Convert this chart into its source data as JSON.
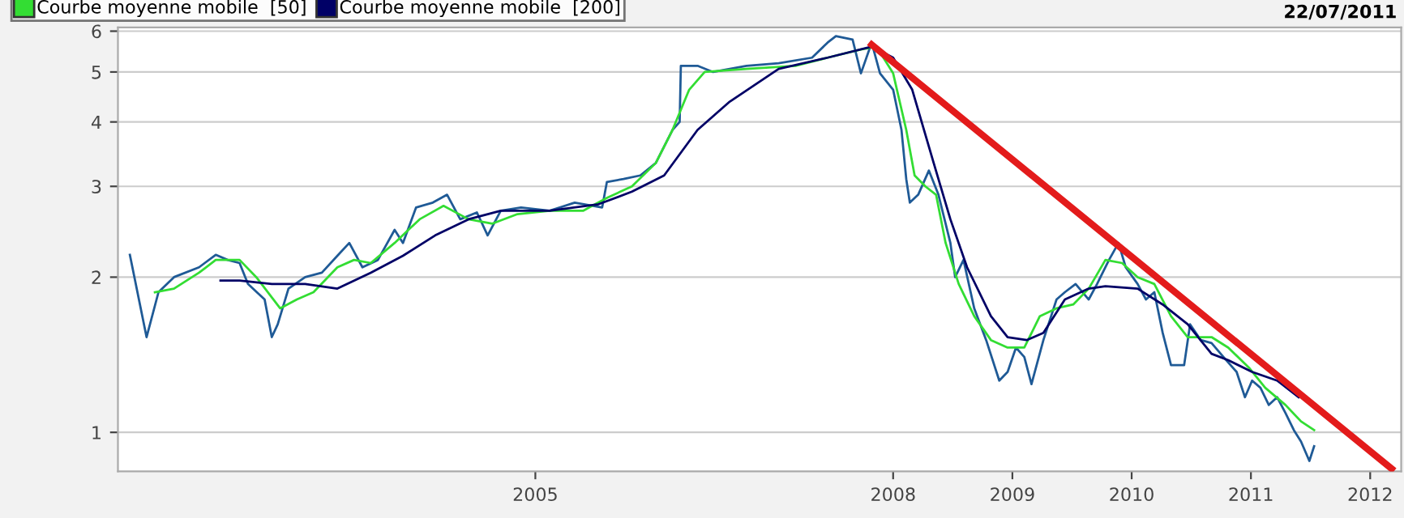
{
  "chart_data": {
    "type": "line",
    "annotations": [
      "22/07/2011"
    ],
    "xlim": [
      2001.5,
      2012.26
    ],
    "xticks": [
      2005,
      2008,
      2009,
      2010,
      2011,
      2012
    ],
    "ylim": [
      0.84,
      6.1
    ],
    "yticks": [
      1,
      2,
      3,
      4,
      5,
      6
    ],
    "log": true,
    "grid": "y",
    "legend": "top left",
    "marker": "none",
    "line_style": "solid",
    "series": [
      {
        "color": "#1f5a96",
        "x": [
          2001.6,
          2001.74,
          2001.84,
          2001.97,
          2002.18,
          2002.32,
          2002.42,
          2002.52,
          2002.59,
          2002.73,
          2002.79,
          2002.84,
          2002.93,
          2003.07,
          2003.21,
          2003.34,
          2003.44,
          2003.55,
          2003.68,
          2003.82,
          2003.89,
          2004.0,
          2004.14,
          2004.26,
          2004.37,
          2004.51,
          2004.6,
          2004.71,
          2004.88,
          2005.12,
          2005.33,
          2005.56,
          2005.6,
          2005.74,
          2005.88,
          2006.01,
          2006.15,
          2006.21,
          2006.22,
          2006.36,
          2006.49,
          2006.77,
          2007.04,
          2007.32,
          2007.45,
          2007.52,
          2007.66,
          2007.73,
          2007.82,
          2007.89,
          2008.0,
          2008.07,
          2008.11,
          2008.14,
          2008.21,
          2008.3,
          2008.38,
          2008.48,
          2008.52,
          2008.59,
          2008.68,
          2008.78,
          2008.89,
          2008.96,
          2009.03,
          2009.1,
          2009.16,
          2009.26,
          2009.37,
          2009.44,
          2009.53,
          2009.64,
          2009.71,
          2009.81,
          2009.89,
          2009.95,
          2010.05,
          2010.12,
          2010.19,
          2010.26,
          2010.33,
          2010.44,
          2010.49,
          2010.58,
          2010.67,
          2010.77,
          2010.88,
          2010.95,
          2011.01,
          2011.08,
          2011.15,
          2011.22,
          2011.29,
          2011.36,
          2011.42,
          2011.49,
          2011.53
        ],
        "values": [
          2.21,
          1.53,
          1.87,
          2.0,
          2.09,
          2.21,
          2.16,
          2.13,
          1.94,
          1.81,
          1.53,
          1.62,
          1.9,
          2.0,
          2.04,
          2.2,
          2.33,
          2.09,
          2.16,
          2.47,
          2.33,
          2.73,
          2.79,
          2.89,
          2.59,
          2.67,
          2.41,
          2.69,
          2.73,
          2.69,
          2.79,
          2.73,
          3.06,
          3.1,
          3.15,
          3.33,
          3.86,
          4.0,
          5.14,
          5.14,
          5.0,
          5.14,
          5.2,
          5.33,
          5.7,
          5.87,
          5.78,
          4.97,
          5.7,
          4.97,
          4.62,
          3.86,
          3.1,
          2.79,
          2.89,
          3.22,
          2.89,
          2.33,
          2.0,
          2.16,
          1.74,
          1.51,
          1.26,
          1.31,
          1.46,
          1.4,
          1.24,
          1.51,
          1.81,
          1.87,
          1.94,
          1.81,
          1.94,
          2.16,
          2.33,
          2.09,
          1.94,
          1.81,
          1.87,
          1.56,
          1.35,
          1.35,
          1.62,
          1.51,
          1.49,
          1.4,
          1.31,
          1.17,
          1.26,
          1.22,
          1.13,
          1.17,
          1.09,
          1.01,
          0.96,
          0.88,
          0.94
        ]
      },
      {
        "name": "Courbe moyenne mobile  [50]",
        "color": "#33dd33",
        "x": [
          2001.81,
          2001.97,
          2002.18,
          2002.32,
          2002.52,
          2002.66,
          2002.86,
          2003.0,
          2003.14,
          2003.34,
          2003.48,
          2003.62,
          2003.82,
          2004.03,
          2004.23,
          2004.44,
          2004.64,
          2004.85,
          2005.12,
          2005.4,
          2005.6,
          2005.81,
          2006.01,
          2006.15,
          2006.29,
          2006.42,
          2006.77,
          2007.18,
          2007.45,
          2007.73,
          2007.86,
          2008.0,
          2008.11,
          2008.18,
          2008.27,
          2008.36,
          2008.44,
          2008.55,
          2008.68,
          2008.82,
          2008.96,
          2009.1,
          2009.23,
          2009.37,
          2009.51,
          2009.64,
          2009.78,
          2009.92,
          2010.05,
          2010.19,
          2010.33,
          2010.47,
          2010.67,
          2010.81,
          2010.99,
          2011.12,
          2011.29,
          2011.42,
          2011.53
        ],
        "values": [
          1.87,
          1.9,
          2.04,
          2.16,
          2.16,
          2.0,
          1.74,
          1.81,
          1.87,
          2.09,
          2.16,
          2.13,
          2.33,
          2.59,
          2.75,
          2.59,
          2.54,
          2.65,
          2.69,
          2.69,
          2.85,
          3.0,
          3.33,
          3.86,
          4.62,
          5.0,
          5.07,
          5.14,
          5.33,
          5.53,
          5.6,
          4.97,
          3.86,
          3.15,
          3.0,
          2.89,
          2.33,
          1.94,
          1.68,
          1.51,
          1.46,
          1.46,
          1.68,
          1.74,
          1.77,
          1.9,
          2.16,
          2.13,
          2.0,
          1.94,
          1.68,
          1.53,
          1.53,
          1.46,
          1.33,
          1.22,
          1.13,
          1.05,
          1.01
        ]
      },
      {
        "name": "Courbe moyenne mobile  [200]",
        "color": "#000066",
        "x": [
          2002.36,
          2002.52,
          2002.79,
          2003.07,
          2003.34,
          2003.62,
          2003.89,
          2004.16,
          2004.44,
          2004.71,
          2005.12,
          2005.53,
          2005.81,
          2006.08,
          2006.36,
          2006.63,
          2007.04,
          2007.45,
          2007.82,
          2008.0,
          2008.16,
          2008.34,
          2008.48,
          2008.62,
          2008.82,
          2008.96,
          2009.12,
          2009.26,
          2009.44,
          2009.64,
          2009.78,
          2010.05,
          2010.26,
          2010.47,
          2010.67,
          2010.81,
          2011.01,
          2011.22,
          2011.4
        ],
        "values": [
          1.97,
          1.97,
          1.94,
          1.94,
          1.9,
          2.04,
          2.2,
          2.41,
          2.59,
          2.69,
          2.69,
          2.77,
          2.93,
          3.15,
          3.86,
          4.38,
          5.07,
          5.33,
          5.6,
          5.33,
          4.62,
          3.33,
          2.59,
          2.09,
          1.68,
          1.53,
          1.51,
          1.56,
          1.81,
          1.9,
          1.92,
          1.9,
          1.77,
          1.62,
          1.42,
          1.38,
          1.31,
          1.26,
          1.17
        ]
      },
      {
        "color": "#e31b1b",
        "x": [
          2007.82,
          2012.18
        ],
        "values": [
          5.65,
          0.85
        ]
      }
    ]
  }
}
